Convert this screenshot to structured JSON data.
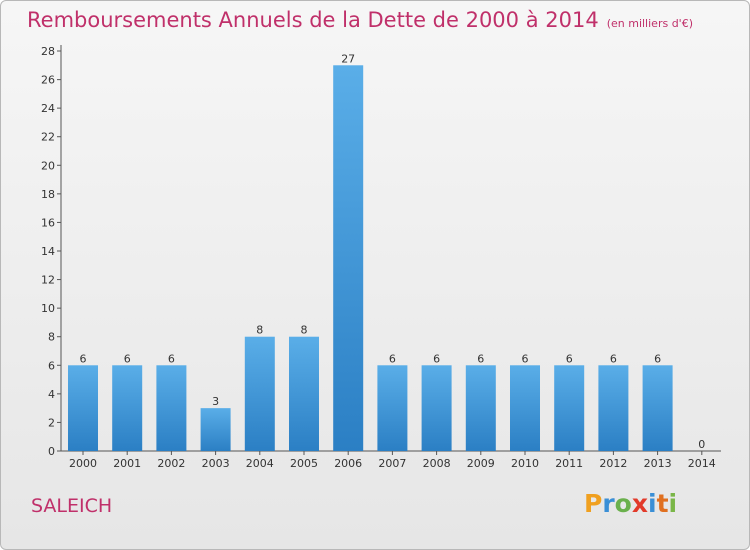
{
  "title": "Remboursements Annuels de la Dette de 2000 à 2014",
  "unit_note": "(en milliers d'€)",
  "location": "SALEICH",
  "logo": {
    "letters": [
      "P",
      "r",
      "o",
      "x",
      "i",
      "t",
      "i"
    ],
    "colors": [
      "#f0a020",
      "#3a8fd6",
      "#6ab04c",
      "#e23a2a",
      "#3a8fd6",
      "#e07020",
      "#7ab648"
    ]
  },
  "colors": {
    "bar_light": "#5aaee8",
    "bar_dark": "#2b7fc4",
    "title": "#c0306a"
  },
  "chart_data": {
    "type": "bar",
    "title": "Remboursements Annuels de la Dette de 2000 à 2014",
    "categories": [
      "2000",
      "2001",
      "2002",
      "2003",
      "2004",
      "2005",
      "2006",
      "2007",
      "2008",
      "2009",
      "2010",
      "2011",
      "2012",
      "2013",
      "2014"
    ],
    "values": [
      6,
      6,
      6,
      3,
      8,
      8,
      27,
      6,
      6,
      6,
      6,
      6,
      6,
      6,
      0
    ],
    "ylim": [
      0,
      28
    ],
    "yticks": [
      0,
      2,
      4,
      6,
      8,
      10,
      12,
      14,
      16,
      18,
      20,
      22,
      24,
      26,
      28
    ],
    "xlabel": "",
    "ylabel": "",
    "grid": false
  }
}
